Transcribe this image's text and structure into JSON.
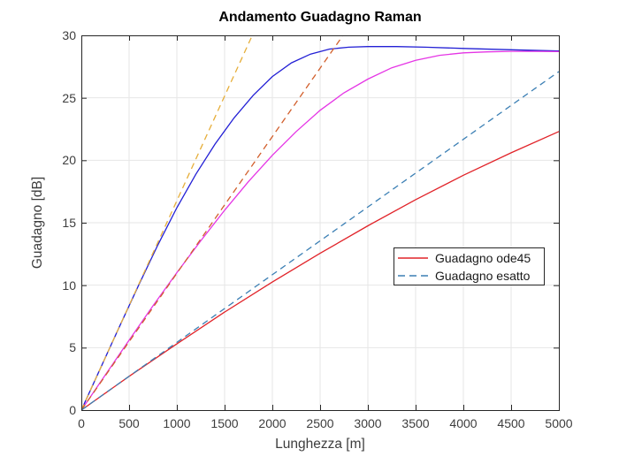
{
  "title": "Andamento Guadagno Raman",
  "colors": {
    "background": "#ffffff",
    "grid": "#e6e6e6",
    "axis": "#262626",
    "tick_text": "#3d3d3d",
    "legend_border": "#262626"
  },
  "legend": {
    "entries": [
      {
        "label": "Guadagno ode45",
        "color": "#e12329",
        "dash": false
      },
      {
        "label": "Guadagno esatto",
        "color": "#3b7fb4",
        "dash": true
      }
    ]
  },
  "chart_data": {
    "type": "line",
    "title": "Andamento Guadagno Raman",
    "xlabel": "Lunghezza [m]",
    "ylabel": "Guadagno [dB]",
    "xlim": [
      0,
      5000
    ],
    "ylim": [
      0,
      30
    ],
    "xticks": [
      0,
      500,
      1000,
      1500,
      2000,
      2500,
      3000,
      3500,
      4000,
      4500,
      5000
    ],
    "yticks": [
      0,
      5,
      10,
      15,
      20,
      25,
      30
    ],
    "grid": true,
    "legend_position": "inside-right-middle",
    "series": [
      {
        "id": "ode45-blue",
        "name": "Guadagno ode45 (curva blu)",
        "color": "#2320d5",
        "dash": false,
        "points": [
          [
            0,
            0
          ],
          [
            200,
            3.35
          ],
          [
            400,
            6.7
          ],
          [
            600,
            10.0
          ],
          [
            800,
            13.2
          ],
          [
            1000,
            16.2
          ],
          [
            1200,
            18.9
          ],
          [
            1400,
            21.3
          ],
          [
            1600,
            23.4
          ],
          [
            1800,
            25.2
          ],
          [
            2000,
            26.7
          ],
          [
            2200,
            27.8
          ],
          [
            2400,
            28.5
          ],
          [
            2600,
            28.9
          ],
          [
            2800,
            29.05
          ],
          [
            3000,
            29.1
          ],
          [
            3300,
            29.1
          ],
          [
            3600,
            29.05
          ],
          [
            4000,
            28.95
          ],
          [
            4500,
            28.85
          ],
          [
            5000,
            28.75
          ]
        ]
      },
      {
        "id": "ode45-magenta",
        "name": "Guadagno ode45 (curva magenta)",
        "color": "#e535e5",
        "dash": false,
        "points": [
          [
            0,
            0
          ],
          [
            250,
            2.8
          ],
          [
            500,
            5.6
          ],
          [
            750,
            8.35
          ],
          [
            1000,
            11.0
          ],
          [
            1250,
            13.55
          ],
          [
            1500,
            16.0
          ],
          [
            1750,
            18.3
          ],
          [
            2000,
            20.4
          ],
          [
            2250,
            22.3
          ],
          [
            2500,
            24.0
          ],
          [
            2750,
            25.4
          ],
          [
            3000,
            26.5
          ],
          [
            3250,
            27.4
          ],
          [
            3500,
            28.0
          ],
          [
            3750,
            28.4
          ],
          [
            4000,
            28.6
          ],
          [
            4250,
            28.68
          ],
          [
            4500,
            28.72
          ],
          [
            4750,
            28.72
          ],
          [
            5000,
            28.7
          ]
        ]
      },
      {
        "id": "ode45-red",
        "name": "Guadagno ode45 (curva rossa)",
        "color": "#e12329",
        "dash": false,
        "points": [
          [
            0,
            0
          ],
          [
            500,
            2.7
          ],
          [
            1000,
            5.3
          ],
          [
            1500,
            7.85
          ],
          [
            2000,
            10.25
          ],
          [
            2500,
            12.55
          ],
          [
            3000,
            14.75
          ],
          [
            3500,
            16.85
          ],
          [
            4000,
            18.8
          ],
          [
            4500,
            20.6
          ],
          [
            5000,
            22.3
          ]
        ]
      },
      {
        "id": "esatto-yellow",
        "name": "Guadagno esatto (retta gialla)",
        "color": "#e6ae3a",
        "dash": true,
        "points": [
          [
            0,
            0
          ],
          [
            1790,
            30
          ]
        ]
      },
      {
        "id": "esatto-orange",
        "name": "Guadagno esatto (retta arancione)",
        "color": "#d25f2c",
        "dash": true,
        "points": [
          [
            0,
            0
          ],
          [
            2740,
            30
          ]
        ]
      },
      {
        "id": "esatto-blue",
        "name": "Guadagno esatto (retta azzurra)",
        "color": "#3b7fb4",
        "dash": true,
        "points": [
          [
            0,
            0
          ],
          [
            5000,
            27.1
          ]
        ]
      }
    ]
  }
}
